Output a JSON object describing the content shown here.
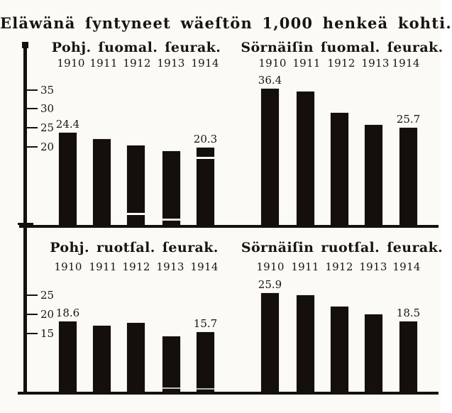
{
  "page": {
    "suptitle": "Eläwänä ſyntyneet wäeſtön 1,000 henkeä kohti.",
    "paper_color": "#fbfaf7",
    "ink_color": "#1a140e"
  },
  "chart_data": [
    {
      "type": "bar",
      "title": "Pohj. ſuomal. ſeurak.",
      "categories": [
        "1910",
        "1911",
        "1912",
        "1913",
        "1914"
      ],
      "values": [
        24.4,
        22.6,
        21.0,
        19.5,
        20.3
      ],
      "bar_value_labels": [
        "24.4",
        "",
        "",
        "",
        "20.3"
      ],
      "yticks": [
        "35",
        "30",
        "25",
        "20"
      ],
      "ylabel": "",
      "axis_side": "left",
      "grid": "off"
    },
    {
      "type": "bar",
      "title": "Sörnäiſin ſuomal. ſeurak.",
      "categories": [
        "1910",
        "1911",
        "1912",
        "1913",
        "1914"
      ],
      "values": [
        36.4,
        35.5,
        29.8,
        26.5,
        25.7
      ],
      "bar_value_labels": [
        "36.4",
        "",
        "",
        "",
        "25.7"
      ],
      "yticks": [],
      "ylabel": "",
      "axis_side": "shared-left",
      "grid": "off"
    },
    {
      "type": "bar",
      "title": "Pohj. ruotſal. ſeurak.",
      "categories": [
        "1910",
        "1911",
        "1912",
        "1913",
        "1914"
      ],
      "values": [
        18.6,
        17.5,
        18.3,
        14.6,
        15.7
      ],
      "bar_value_labels": [
        "18.6",
        "",
        "",
        "",
        "15.7"
      ],
      "yticks": [
        "25",
        "20",
        "15"
      ],
      "ylabel": "",
      "axis_side": "left",
      "grid": "off"
    },
    {
      "type": "bar",
      "title": "Sörnäiſin ruotſal. ſeurak.",
      "categories": [
        "1910",
        "1911",
        "1912",
        "1913",
        "1914"
      ],
      "values": [
        25.9,
        25.3,
        22.4,
        20.4,
        18.5
      ],
      "bar_value_labels": [
        "25.9",
        "",
        "",
        "",
        "18.5"
      ],
      "yticks": [],
      "ylabel": "",
      "axis_side": "shared-left",
      "grid": "off"
    }
  ]
}
